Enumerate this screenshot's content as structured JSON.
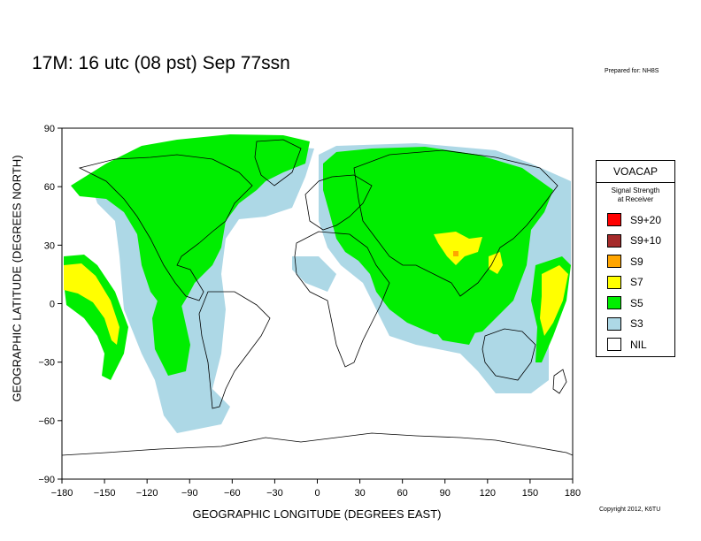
{
  "title": "17M:  16 utc (08 pst) Sep 77ssn",
  "prepared_for": "Prepared for: NH8S",
  "copyright": "Copyright 2012, K6TU",
  "axes": {
    "ylabel": "GEOGRAPHIC LATITUDE (DEGREES NORTH)",
    "xlabel": "GEOGRAPHIC LONGITUDE (DEGREES EAST)",
    "yticks": [
      "90",
      "60",
      "30",
      "0",
      "−30",
      "−60",
      "−90"
    ],
    "xticks": [
      "−180",
      "−150",
      "−120",
      "−90",
      "−60",
      "−30",
      "0",
      "30",
      "60",
      "90",
      "120",
      "150",
      "180"
    ]
  },
  "legend": {
    "title": "VOACAP",
    "subtitle_line1": "Signal Strength",
    "subtitle_line2": "at Receiver",
    "items": [
      {
        "label": "S9+20",
        "color": "#ff0000"
      },
      {
        "label": "S9+10",
        "color": "#a52a2a"
      },
      {
        "label": "S9",
        "color": "#ffa500"
      },
      {
        "label": "S7",
        "color": "#ffff00"
      },
      {
        "label": "S5",
        "color": "#00ee00"
      },
      {
        "label": "S3",
        "color": "#add8e6"
      },
      {
        "label": "NIL",
        "color": "#ffffff"
      }
    ]
  },
  "coverage_colors": {
    "s3": "#add8e6",
    "s5": "#00ee00",
    "s7": "#ffff00",
    "s9": "#ffa500"
  }
}
